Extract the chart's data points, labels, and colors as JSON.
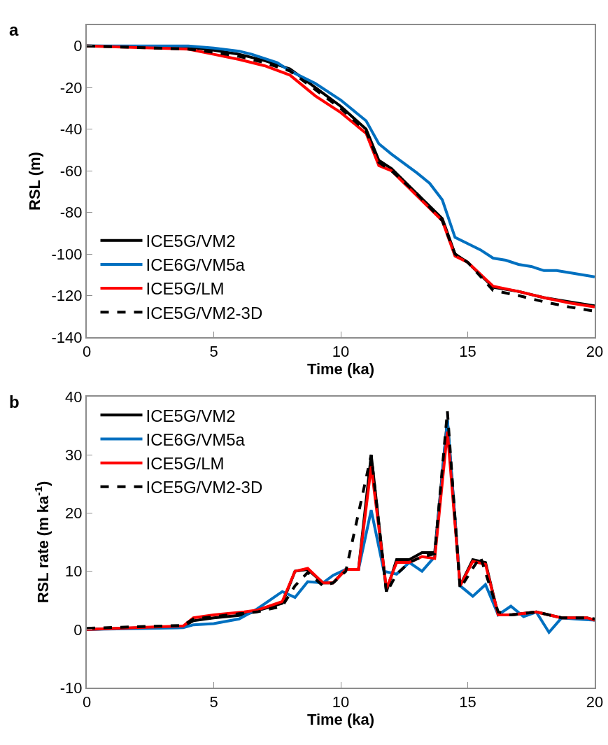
{
  "chart_data": [
    {
      "type": "line",
      "title": "a",
      "xlabel": "Time (ka)",
      "ylabel": "RSL (m)",
      "xlim": [
        0,
        20
      ],
      "xticks": [
        0,
        5,
        10,
        15,
        20
      ],
      "ylim": [
        -140,
        10
      ],
      "yticks": [
        -140,
        -120,
        -100,
        -80,
        -60,
        -40,
        -20,
        0
      ],
      "grid": false,
      "legend": "bottom left",
      "line_style": "solid",
      "marker": "none",
      "series": [
        {
          "name": "ICE5G/VM2",
          "color": "#000000",
          "x": [
            0,
            4,
            5,
            6,
            7,
            8,
            9,
            10,
            11,
            11.5,
            12,
            13,
            14,
            14.5,
            15,
            16,
            17,
            18,
            19,
            20
          ],
          "values": [
            0,
            -0.5,
            -2,
            -4,
            -7,
            -11,
            -20,
            -29,
            -40,
            -55,
            -59,
            -71,
            -83,
            -100,
            -104,
            -116,
            -118,
            -121,
            -123,
            -125
          ]
        },
        {
          "name": "ICE6G/VM5a",
          "color": "#0070c0",
          "x": [
            0,
            4,
            5,
            6,
            6.5,
            7,
            7.5,
            8,
            9,
            10,
            11,
            11.5,
            12,
            13,
            13.5,
            14,
            14.5,
            15,
            15.5,
            16,
            16.5,
            17,
            17.5,
            18,
            18.5,
            19,
            20
          ],
          "values": [
            0,
            0,
            -1,
            -2.5,
            -4,
            -6,
            -8,
            -12,
            -18,
            -26,
            -36,
            -47,
            -52,
            -61,
            -66,
            -74,
            -92,
            -95,
            -98,
            -102,
            -103,
            -105,
            -106,
            -108,
            -108,
            -109,
            -111
          ]
        },
        {
          "name": "ICE5G/LM",
          "color": "#ff0000",
          "x": [
            0,
            4,
            5,
            6,
            7,
            8,
            9,
            10,
            11,
            11.5,
            12,
            13,
            14,
            14.5,
            15,
            16,
            17,
            18,
            19,
            20
          ],
          "values": [
            0,
            -1.5,
            -4,
            -6.5,
            -9.5,
            -14,
            -24,
            -32,
            -42,
            -57.5,
            -60,
            -72,
            -84,
            -101,
            -104,
            -115.5,
            -118,
            -121,
            -123.5,
            -125.5
          ]
        },
        {
          "name": "ICE5G/VM2-3D",
          "color": "#000000",
          "line_style": "dashed",
          "x": [
            0,
            4,
            5,
            6,
            7,
            8,
            9,
            10,
            11,
            11.5,
            12,
            13,
            14,
            14.5,
            15,
            16,
            17,
            18,
            19,
            20
          ],
          "values": [
            0,
            -1.5,
            -3,
            -5,
            -8,
            -12,
            -21,
            -30,
            -41,
            -56,
            -60,
            -71,
            -84,
            -100,
            -104,
            -117.5,
            -120,
            -123,
            -125.5,
            -127.5
          ]
        }
      ]
    },
    {
      "type": "line",
      "title": "b",
      "xlabel": "Time (ka)",
      "ylabel": "RSL rate (m ka$^{-1}$)",
      "xlim": [
        0,
        20
      ],
      "xticks": [
        0,
        5,
        10,
        15,
        20
      ],
      "ylim": [
        -10,
        40
      ],
      "yticks": [
        -10,
        0,
        10,
        20,
        30,
        40
      ],
      "grid": false,
      "legend": "top left",
      "line_style": "solid",
      "marker": "none",
      "series": [
        {
          "name": "ICE5G/VM2",
          "color": "#000000",
          "x": [
            0,
            3.8,
            4.2,
            5,
            6.2,
            6.7,
            7.7,
            8.2,
            8.7,
            9.3,
            9.7,
            10.2,
            10.7,
            11.2,
            11.8,
            12.2,
            12.7,
            13.2,
            13.7,
            14.2,
            14.7,
            15.2,
            15.7,
            16.2,
            16.7,
            17.7,
            18.7,
            19.7,
            20
          ],
          "values": [
            0,
            0.5,
            1.5,
            2,
            2.5,
            3.2,
            4.5,
            10,
            10.3,
            8,
            8,
            10.3,
            10.3,
            30,
            6.5,
            12,
            12,
            13.2,
            13.2,
            36,
            7.5,
            12,
            11.5,
            2.5,
            2.5,
            3,
            2,
            2,
            1.6
          ]
        },
        {
          "name": "ICE6G/VM5a",
          "color": "#0070c0",
          "x": [
            0,
            3.8,
            4.2,
            5,
            6,
            6.7,
            7.7,
            8.2,
            8.7,
            9.3,
            9.7,
            10.2,
            10.7,
            11.2,
            11.7,
            12.2,
            12.7,
            13.2,
            13.7,
            14.2,
            14.7,
            15.2,
            15.7,
            16.2,
            16.7,
            17.2,
            17.7,
            18.2,
            18.7,
            19.2,
            20
          ],
          "values": [
            0,
            0.3,
            0.8,
            1,
            1.8,
            3.5,
            6.5,
            5.5,
            8.2,
            8,
            9.3,
            10.3,
            10.3,
            20.5,
            10,
            9.5,
            11.5,
            10,
            12.5,
            36,
            7.5,
            5.7,
            7.7,
            2.5,
            4,
            2.2,
            3,
            -0.5,
            2,
            1.8,
            1.6
          ]
        },
        {
          "name": "ICE5G/LM",
          "color": "#ff0000",
          "x": [
            0,
            3.8,
            4.2,
            5,
            6.2,
            6.7,
            7.7,
            8.2,
            8.7,
            9.3,
            9.7,
            10.2,
            10.7,
            11.2,
            11.8,
            12.2,
            12.7,
            13.2,
            13.7,
            14.2,
            14.7,
            15.2,
            15.7,
            16.2,
            16.7,
            17.7,
            18.7,
            19.7,
            20
          ],
          "values": [
            0,
            0.6,
            2,
            2.5,
            3,
            3.3,
            4.8,
            10,
            10.5,
            8,
            8,
            10.3,
            10.3,
            28,
            7,
            11.5,
            11.5,
            12.5,
            12.2,
            34,
            7.5,
            11.7,
            11.2,
            2.5,
            2.5,
            3,
            2,
            2,
            1.6
          ]
        },
        {
          "name": "ICE5G/VM2-3D",
          "color": "#000000",
          "line_style": "dashed",
          "x": [
            0,
            3.8,
            4.2,
            5,
            6,
            6.7,
            7.7,
            8.2,
            8.7,
            9.3,
            9.7,
            10.2,
            10.7,
            11.2,
            11.8,
            12.2,
            12.7,
            13.2,
            13.7,
            14.2,
            14.7,
            15.2,
            15.5,
            16.2,
            16.7,
            17.7,
            18.7,
            19.7,
            20
          ],
          "values": [
            0.2,
            0.7,
            1.8,
            2.2,
            2.7,
            3,
            4,
            7.5,
            9.8,
            7.5,
            8,
            10,
            20,
            30,
            6.3,
            9.5,
            11.5,
            12.5,
            13,
            37.5,
            7,
            10.5,
            12.5,
            3,
            2.5,
            3,
            2,
            2,
            1.8
          ]
        }
      ]
    }
  ]
}
